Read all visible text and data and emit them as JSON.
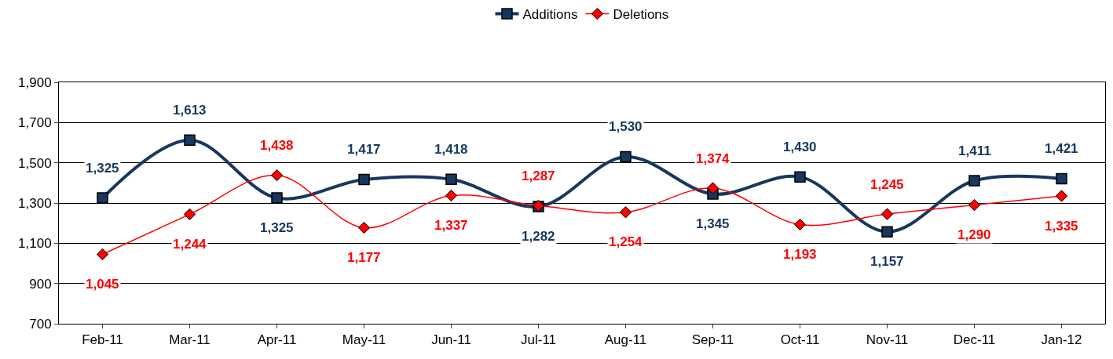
{
  "chart_data": {
    "type": "line",
    "categories": [
      "Feb-11",
      "Mar-11",
      "Apr-11",
      "May-11",
      "Jun-11",
      "Jul-11",
      "Aug-11",
      "Sep-11",
      "Oct-11",
      "Nov-11",
      "Dec-11",
      "Jan-12"
    ],
    "series": [
      {
        "name": "Additions",
        "color": "#17375e",
        "marker": "square",
        "values": [
          1325,
          1613,
          1325,
          1417,
          1418,
          1282,
          1530,
          1345,
          1430,
          1157,
          1411,
          1421
        ],
        "value_labels": [
          "1,325",
          "1,613",
          "1,325",
          "1,417",
          "1,418",
          "1,282",
          "1,530",
          "1,345",
          "1,430",
          "1,157",
          "1,411",
          "1,421"
        ]
      },
      {
        "name": "Deletions",
        "color": "#ff0000",
        "marker": "diamond",
        "values": [
          1045,
          1244,
          1438,
          1177,
          1337,
          1287,
          1254,
          1374,
          1193,
          1245,
          1290,
          1335
        ],
        "value_labels": [
          "1,045",
          "1,244",
          "1,438",
          "1,177",
          "1,337",
          "1,287",
          "1,254",
          "1,374",
          "1,193",
          "1,245",
          "1,290",
          "1,335"
        ]
      }
    ],
    "ylim": [
      700,
      1900
    ],
    "yticks": [
      {
        "value": 700,
        "label": "700"
      },
      {
        "value": 900,
        "label": "900"
      },
      {
        "value": 1100,
        "label": "1,100"
      },
      {
        "value": 1300,
        "label": "1,300"
      },
      {
        "value": 1500,
        "label": "1,500"
      },
      {
        "value": 1700,
        "label": "1,700"
      },
      {
        "value": 1900,
        "label": "1,900"
      }
    ],
    "grid": "y",
    "legend": "top",
    "line_style": "solid"
  }
}
